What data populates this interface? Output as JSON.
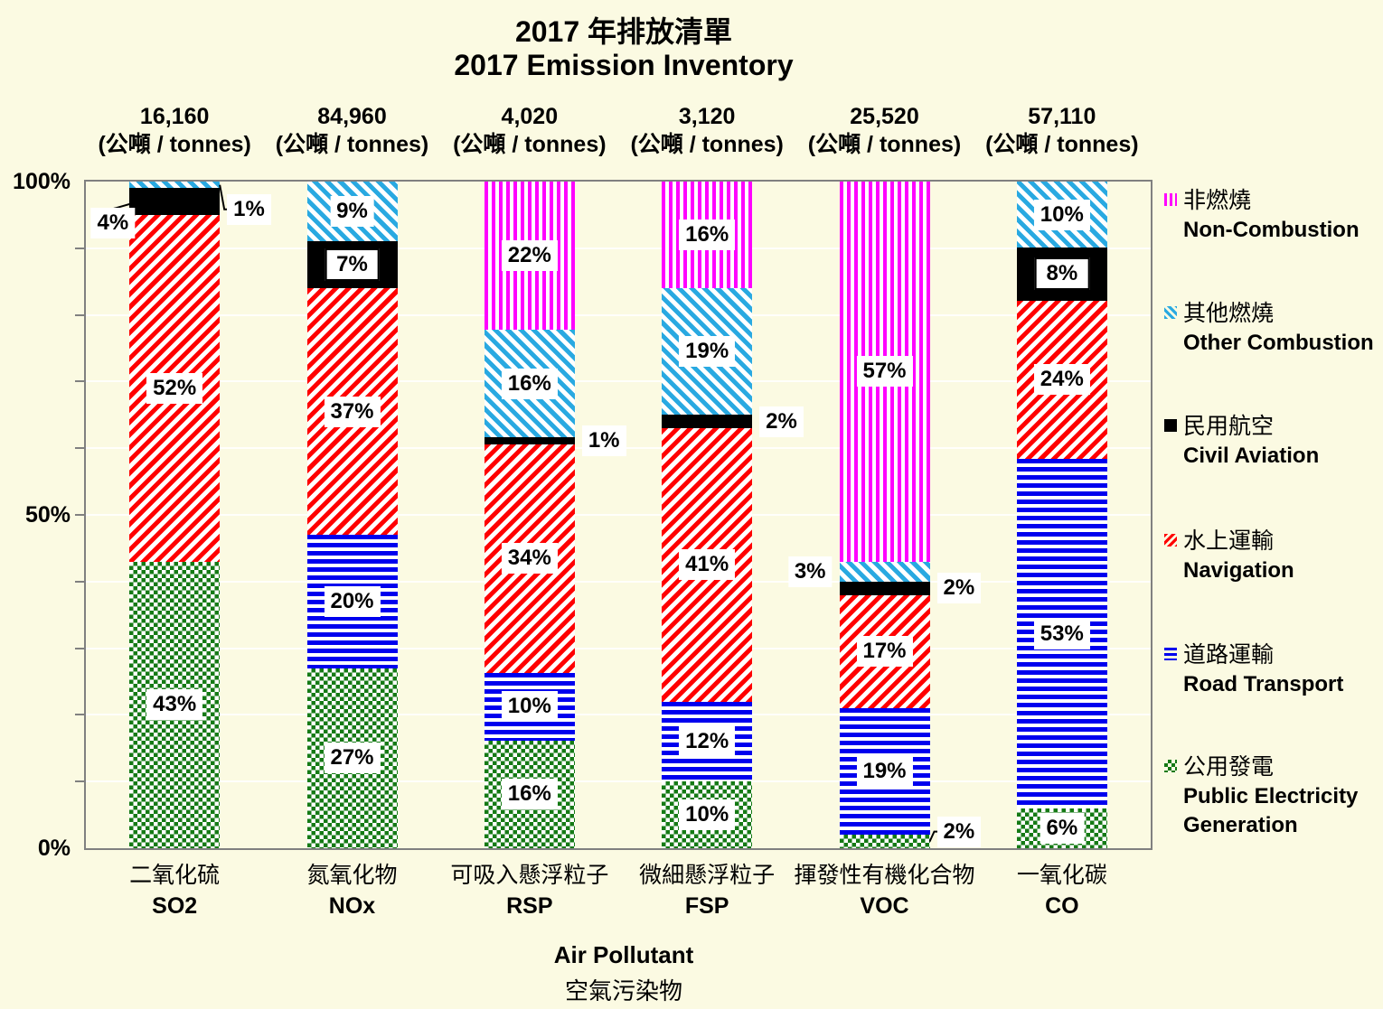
{
  "title": {
    "line1": "2017 年排放清單",
    "line2": "2017 Emission Inventory"
  },
  "y_axis": {
    "labels": [
      "100%",
      "50%",
      "0%"
    ]
  },
  "x_axis": {
    "title_en": "Air Pollutant",
    "title_zh": "空氣污染物"
  },
  "legend": [
    {
      "key": "non_combustion",
      "zh": "非燃燒",
      "en": "Non-Combustion"
    },
    {
      "key": "other_combustion",
      "zh": "其他燃燒",
      "en": "Other Combustion"
    },
    {
      "key": "civil_aviation",
      "zh": "民用航空",
      "en": "Civil Aviation"
    },
    {
      "key": "navigation",
      "zh": "水上運輸",
      "en": "Navigation"
    },
    {
      "key": "road_transport",
      "zh": "道路運輸",
      "en": "Road Transport"
    },
    {
      "key": "public_electricity",
      "zh": "公用發電",
      "en": "Public Electricity Generation"
    }
  ],
  "colors": {
    "background": "#FBFAE2",
    "non_combustion": "#FF00FF",
    "other_combustion": "#29A9E1",
    "civil_aviation": "#000000",
    "navigation": "#FF0000",
    "road_transport": "#0000EE",
    "public_electricity": "#157A15",
    "plot_border": "#808080"
  },
  "chart_data": {
    "type": "bar",
    "stacked": true,
    "title": "2017 Emission Inventory / 2017 年排放清單",
    "xlabel": "Air Pollutant 空氣污染物",
    "ylabel": "%",
    "ylim": [
      0,
      100
    ],
    "y_tick_step": 10,
    "grid": true,
    "legend_position": "right",
    "unit": "(公噸 / tonnes)",
    "categories": [
      {
        "zh": "二氧化硫",
        "en": "SO2",
        "total": "16,160"
      },
      {
        "zh": "氮氧化物",
        "en": "NOx",
        "total": "84,960"
      },
      {
        "zh": "可吸入懸浮粒子",
        "en": "RSP",
        "total": "4,020"
      },
      {
        "zh": "微細懸浮粒子",
        "en": "FSP",
        "total": "3,120"
      },
      {
        "zh": "揮發性有機化合物",
        "en": "VOC",
        "total": "25,520"
      },
      {
        "zh": "一氧化碳",
        "en": "CO",
        "total": "57,110"
      }
    ],
    "series": [
      {
        "key": "public_electricity",
        "name": "Public Electricity Generation",
        "values": [
          43,
          27,
          16,
          10,
          2,
          6
        ]
      },
      {
        "key": "road_transport",
        "name": "Road Transport",
        "values": [
          0,
          20,
          10,
          12,
          19,
          53
        ]
      },
      {
        "key": "navigation",
        "name": "Navigation",
        "values": [
          52,
          37,
          34,
          41,
          17,
          24
        ]
      },
      {
        "key": "civil_aviation",
        "name": "Civil Aviation",
        "values": [
          4,
          7,
          1,
          2,
          2,
          8
        ]
      },
      {
        "key": "other_combustion",
        "name": "Other Combustion",
        "values": [
          1,
          9,
          16,
          19,
          3,
          10
        ]
      },
      {
        "key": "non_combustion",
        "name": "Non-Combustion",
        "values": [
          0,
          0,
          22,
          16,
          57,
          0
        ]
      }
    ],
    "label_layout": [
      {
        "civil_aviation": {
          "mode": "callout-left",
          "dx": 14,
          "dy": 24,
          "connector": "diag"
        },
        "other_combustion": {
          "mode": "callout-right",
          "dy": 27,
          "connector": "elbow"
        }
      },
      {
        "civil_aviation": {
          "bordered": true
        }
      },
      {
        "civil_aviation": {
          "mode": "callout-right",
          "connector": "none"
        }
      },
      {
        "civil_aviation": {
          "mode": "callout-right",
          "connector": "none"
        }
      },
      {
        "public_electricity": {
          "mode": "callout-right",
          "dy": -11,
          "connector": "elbow"
        },
        "civil_aviation": {
          "mode": "callout-right",
          "connector": "none"
        },
        "other_combustion": {
          "mode": "callout-left",
          "connector": "none"
        }
      },
      {
        "civil_aviation": {
          "bordered": true
        }
      }
    ]
  }
}
